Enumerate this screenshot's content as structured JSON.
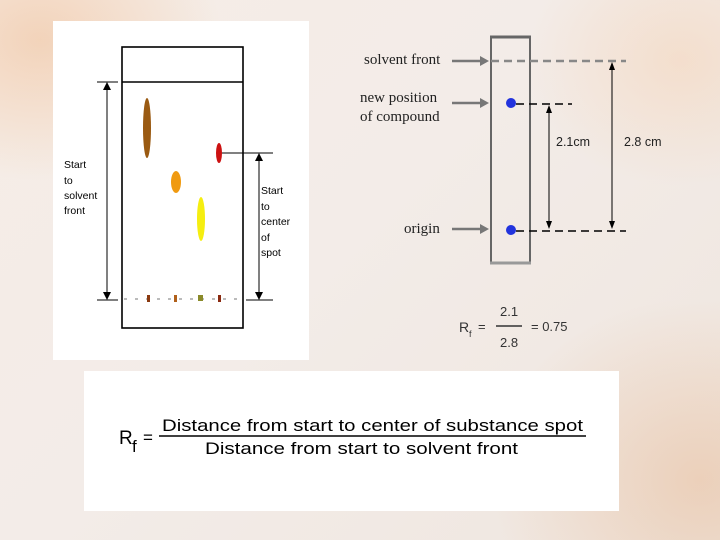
{
  "left_diagram": {
    "label_start_to_solvent_front": [
      "Start",
      "to",
      "solvent",
      "front"
    ],
    "label_start_to_center_of_spot": [
      "Start",
      "to",
      "center",
      "of",
      "spot"
    ]
  },
  "right_diagram": {
    "solvent_front_label": "solvent front",
    "new_position_label": [
      "new position",
      "of compound"
    ],
    "origin_label": "origin",
    "distance_compound": "2.1cm",
    "distance_solvent": "2.8 cm",
    "rf_symbol": "R",
    "rf_subscript": "f",
    "equals": "=",
    "numerator": "2.1",
    "denominator": "2.8",
    "result": "= 0.75"
  },
  "formula": {
    "rf_symbol": "R",
    "rf_subscript": "f",
    "equals": "=",
    "numerator": "Distance from start to center of substance spot",
    "denominator": "Distance from start to solvent front"
  },
  "colors": {
    "dark_spot": "#9a5a12",
    "red_spot": "#cc1111",
    "orange_spot": "#f09a10",
    "yellow_spot": "#f5ee10",
    "blue_spot": "#2233dd",
    "arrow_gray": "#7a7a7a"
  }
}
